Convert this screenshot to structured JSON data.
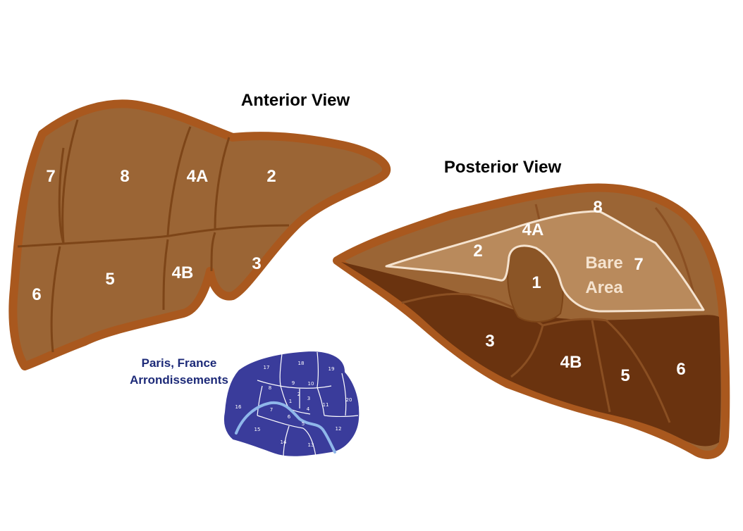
{
  "colors": {
    "liver_fill": "#9b6535",
    "liver_outline": "#a9581e",
    "liver_dark": "#6a330f",
    "bare_area": "#b98a5c",
    "paris_fill": "#3a3c9b",
    "seine": "#8fb7ea",
    "caption_text": "#1d2a78"
  },
  "anterior": {
    "title": "Anterior View",
    "segments": [
      "7",
      "8",
      "4A",
      "2",
      "6",
      "5",
      "4B",
      "3"
    ]
  },
  "posterior": {
    "title": "Posterior View",
    "segments": [
      "8",
      "4A",
      "2",
      "1",
      "7",
      "3",
      "4B",
      "5",
      "6"
    ],
    "bare_area": [
      "Bare",
      "Area"
    ]
  },
  "paris": {
    "caption": [
      "Paris, France",
      "Arrondissements"
    ],
    "arrondissements": [
      "17",
      "18",
      "19",
      "8",
      "9",
      "10",
      "2",
      "3",
      "1",
      "4",
      "11",
      "20",
      "16",
      "7",
      "6",
      "5",
      "15",
      "14",
      "13",
      "12"
    ]
  }
}
